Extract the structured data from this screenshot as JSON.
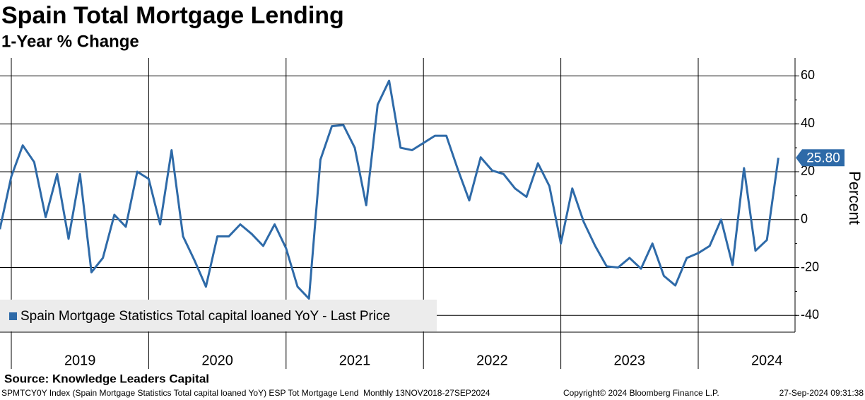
{
  "chart_data": {
    "type": "line",
    "title": "Spain Total Mortgage Lending",
    "subtitle": "1-Year % Change",
    "y_axis_label": "Percent",
    "source": "Source: Knowledge Leaders Capital",
    "footer": [
      "SPMTCY0Y Index (Spain Mortgage Statistics Total capital loaned YoY) ESP Tot Mortgage Lend  Monthly 13NOV2018-27SEP2024",
      "Copyright© 2024 Bloomberg Finance L.P.",
      "27-Sep-2024 09:31:38"
    ],
    "x": [
      "2018-12",
      "2019-01",
      "2019-02",
      "2019-03",
      "2019-04",
      "2019-05",
      "2019-06",
      "2019-07",
      "2019-08",
      "2019-09",
      "2019-10",
      "2019-11",
      "2019-12",
      "2020-01",
      "2020-02",
      "2020-03",
      "2020-04",
      "2020-05",
      "2020-06",
      "2020-07",
      "2020-08",
      "2020-09",
      "2020-10",
      "2020-11",
      "2020-12",
      "2021-01",
      "2021-02",
      "2021-03",
      "2021-04",
      "2021-05",
      "2021-06",
      "2021-07",
      "2021-08",
      "2021-09",
      "2021-10",
      "2021-11",
      "2021-12",
      "2022-01",
      "2022-02",
      "2022-03",
      "2022-04",
      "2022-05",
      "2022-06",
      "2022-07",
      "2022-08",
      "2022-09",
      "2022-10",
      "2022-11",
      "2022-12",
      "2023-01",
      "2023-02",
      "2023-03",
      "2023-04",
      "2023-05",
      "2023-06",
      "2023-07",
      "2023-08",
      "2023-09",
      "2023-10",
      "2023-11",
      "2023-12",
      "2024-01",
      "2024-02",
      "2024-03",
      "2024-04",
      "2024-05",
      "2024-06",
      "2024-07",
      "2024-08"
    ],
    "series": [
      {
        "name": "Spain Mortgage Statistics Total capital loaned YoY - Last Price",
        "color": "#2e6aa8",
        "values": [
          -4,
          18,
          31,
          24,
          1,
          19,
          -8,
          19,
          -22,
          -16,
          2,
          -3,
          20,
          17,
          -2,
          29,
          -7,
          -17,
          -28,
          -7,
          -7,
          -2,
          -6,
          -11,
          -2,
          -12,
          -28,
          -33,
          25,
          39,
          39.5,
          30,
          6,
          48,
          58,
          30,
          29,
          32,
          35,
          35,
          21,
          8,
          26,
          20.5,
          19,
          13,
          9.5,
          23.5,
          14,
          -10,
          13,
          -1,
          -11,
          -19.5,
          -20,
          -16,
          -20.5,
          -10,
          -23.5,
          -27.5,
          -16,
          -14,
          -11,
          0,
          -19,
          21.5,
          -13,
          -8.5,
          25.8
        ],
        "last_value_label": "25.80"
      }
    ],
    "xticks": [
      2019,
      2020,
      2021,
      2022,
      2023,
      2024
    ],
    "ylim": [
      -47,
      67.5
    ],
    "yticks": [
      60,
      40,
      20,
      0,
      -20,
      -40
    ],
    "grid": true,
    "legend": "bottom-left"
  }
}
